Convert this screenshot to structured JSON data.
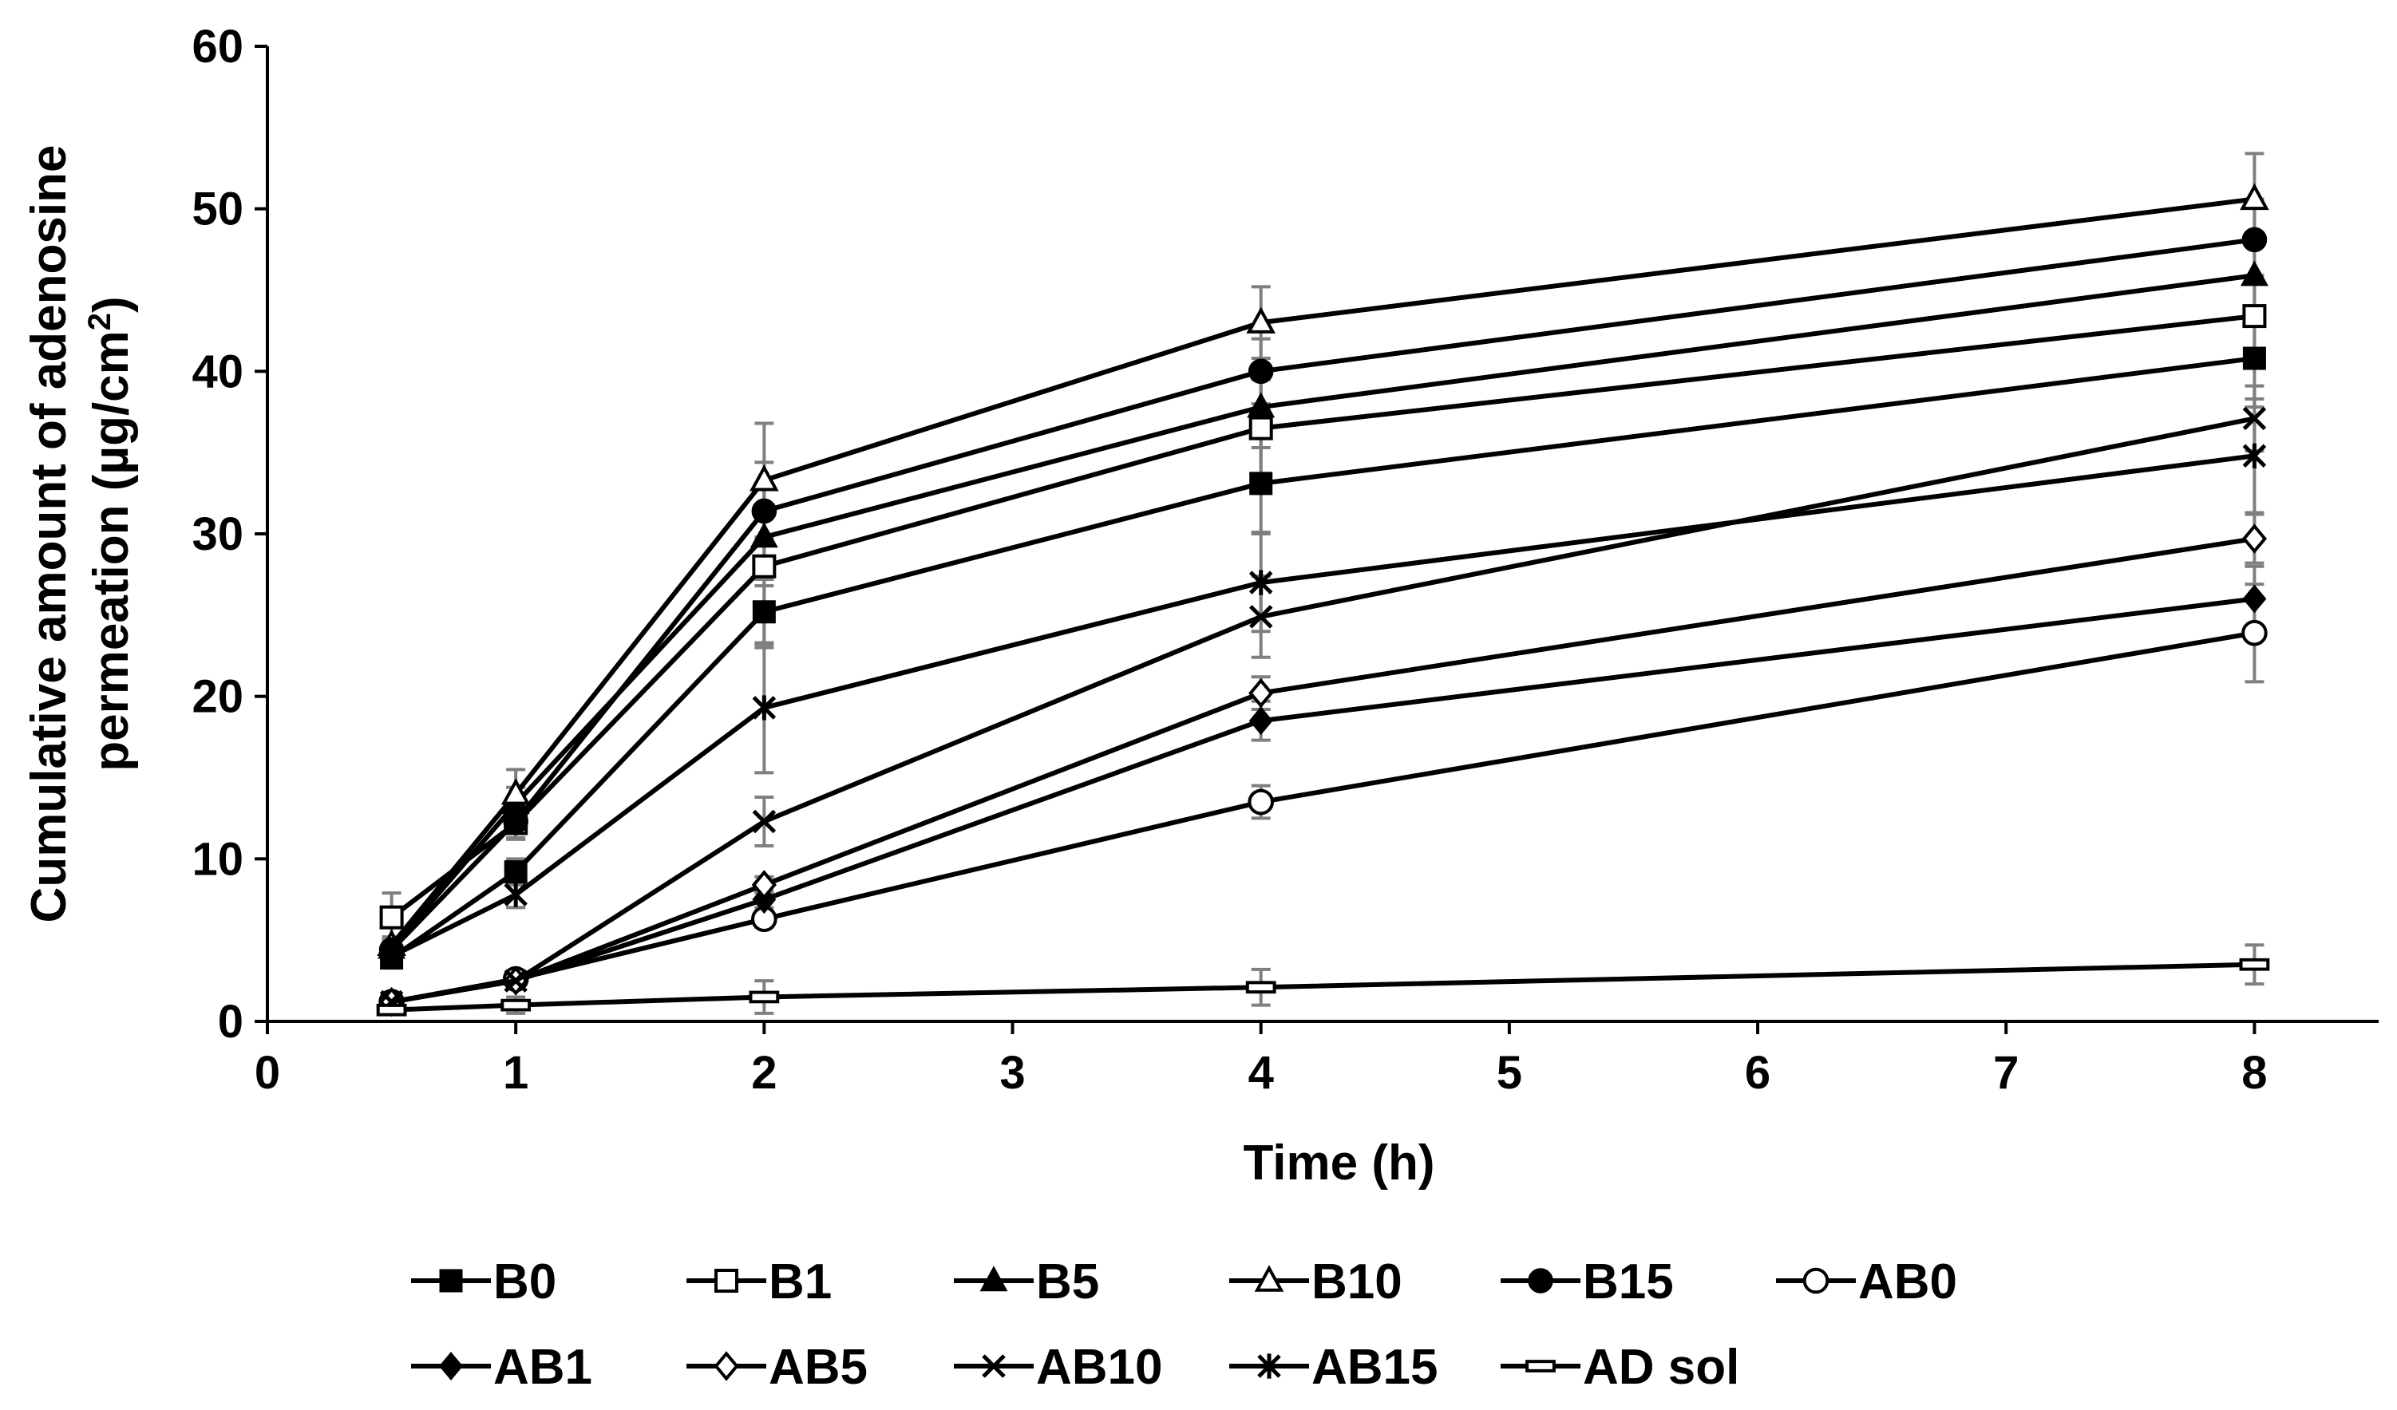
{
  "chart_data": {
    "type": "line",
    "title": "",
    "xlabel": "Time (h)",
    "ylabel_line1": "Cumulative amount of adenosine",
    "ylabel_line2_prefix": "permeation (µg/cm",
    "ylabel_line2_sup": "2",
    "ylabel_line2_suffix": ")",
    "xlim": [
      0,
      8.5
    ],
    "ylim": [
      0,
      60
    ],
    "x_ticks": [
      0,
      1,
      2,
      3,
      4,
      5,
      6,
      7,
      8
    ],
    "x_tick_labels": [
      "0",
      "1",
      "2",
      "3",
      "4",
      "5",
      "6",
      "7",
      "8"
    ],
    "y_ticks": [
      0,
      10,
      20,
      30,
      40,
      50,
      60
    ],
    "y_tick_labels": [
      "0",
      "10",
      "20",
      "30",
      "40",
      "50",
      "60"
    ],
    "x": [
      0.5,
      1,
      2,
      4,
      8
    ],
    "legend_position": "bottom",
    "series": [
      {
        "name": "B0",
        "marker": "square-filled",
        "values": [
          3.9,
          9.2,
          25.2,
          33.1,
          40.8
        ],
        "errors": [
          0.5,
          0.8,
          2.0,
          3.0,
          3.0
        ]
      },
      {
        "name": "B1",
        "marker": "square-open",
        "values": [
          6.4,
          12.2,
          28.0,
          36.5,
          43.4
        ],
        "errors": [
          1.5,
          1.0,
          5.0,
          3.0,
          2.5
        ]
      },
      {
        "name": "B5",
        "marker": "triangle-filled",
        "values": [
          4.5,
          13.4,
          29.8,
          37.8,
          45.9
        ],
        "errors": [
          0.5,
          1.0,
          3.0,
          2.5,
          2.5
        ]
      },
      {
        "name": "B10",
        "marker": "triangle-open",
        "values": [
          4.7,
          14.0,
          33.3,
          43.0,
          50.6
        ],
        "errors": [
          0.5,
          1.5,
          3.5,
          2.2,
          2.8
        ]
      },
      {
        "name": "B15",
        "marker": "circle-filled",
        "values": [
          4.4,
          12.3,
          31.4,
          40.0,
          48.1
        ],
        "errors": [
          0.5,
          1.0,
          3.0,
          2.0,
          2.5
        ]
      },
      {
        "name": "AB0",
        "marker": "circle-open",
        "values": [
          1.2,
          2.6,
          6.3,
          13.5,
          23.9
        ],
        "errors": [
          0.2,
          0.3,
          0.5,
          1.0,
          3.0
        ]
      },
      {
        "name": "AB1",
        "marker": "diamond-filled",
        "values": [
          1.2,
          2.5,
          7.5,
          18.5,
          26.0
        ],
        "errors": [
          0.2,
          0.3,
          0.5,
          1.2,
          2.0
        ]
      },
      {
        "name": "AB5",
        "marker": "diamond-open",
        "values": [
          1.2,
          2.5,
          8.4,
          20.2,
          29.7
        ],
        "errors": [
          0.2,
          0.3,
          0.5,
          1.0,
          1.5
        ]
      },
      {
        "name": "AB10",
        "marker": "x",
        "values": [
          1.2,
          2.5,
          12.3,
          24.9,
          37.1
        ],
        "errors": [
          0.2,
          0.3,
          1.5,
          2.5,
          2.0
        ]
      },
      {
        "name": "AB15",
        "marker": "asterisk",
        "values": [
          4.0,
          7.8,
          19.3,
          27.0,
          34.8
        ],
        "errors": [
          0.5,
          0.8,
          4.0,
          3.0,
          3.5
        ]
      },
      {
        "name": "AD sol",
        "marker": "dash-rect",
        "values": [
          0.7,
          1.0,
          1.5,
          2.1,
          3.5
        ],
        "errors": [
          0.2,
          0.5,
          1.0,
          1.1,
          1.2
        ]
      }
    ]
  }
}
